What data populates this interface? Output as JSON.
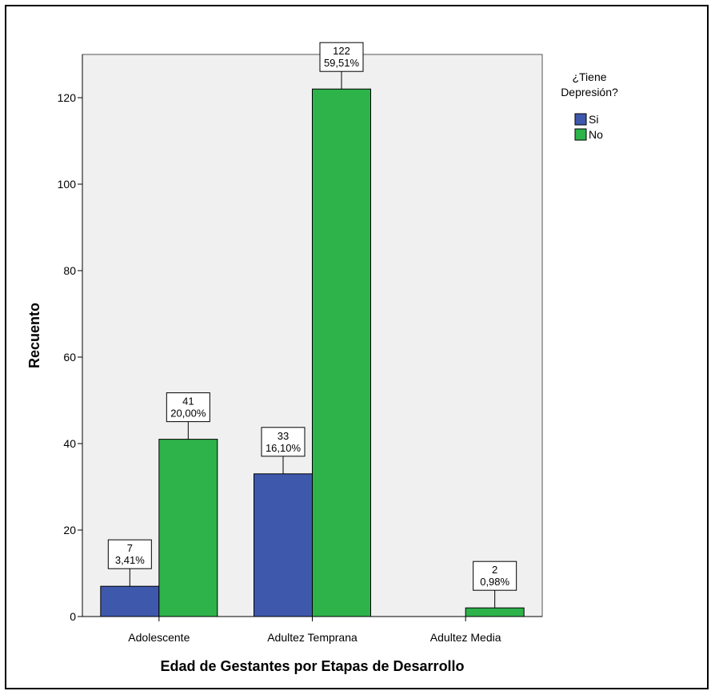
{
  "colors": {
    "plot_bg": "#f0f0f0",
    "Si": "#3e58ac",
    "No": "#2db34a"
  },
  "chart_data": {
    "type": "bar",
    "title": "",
    "xlabel": "Edad de Gestantes por Etapas de Desarrollo",
    "ylabel": "Recuento",
    "ylim": [
      0,
      130
    ],
    "yticks": [
      0,
      20,
      40,
      60,
      80,
      100,
      120
    ],
    "categories": [
      "Adolescente",
      "Adultez Temprana",
      "Adultez Media"
    ],
    "legend": {
      "title_lines": [
        "¿Tiene",
        "Depresión?"
      ],
      "placement": "right"
    },
    "series": [
      {
        "name": "Si",
        "values": [
          7,
          33,
          0
        ],
        "labels": [
          [
            "7",
            "3,41%"
          ],
          [
            "33",
            "16,10%"
          ],
          null
        ]
      },
      {
        "name": "No",
        "values": [
          41,
          122,
          2
        ],
        "labels": [
          [
            "41",
            "20,00%"
          ],
          [
            "122",
            "59,51%"
          ],
          [
            "2",
            "0,98%"
          ]
        ]
      }
    ]
  }
}
